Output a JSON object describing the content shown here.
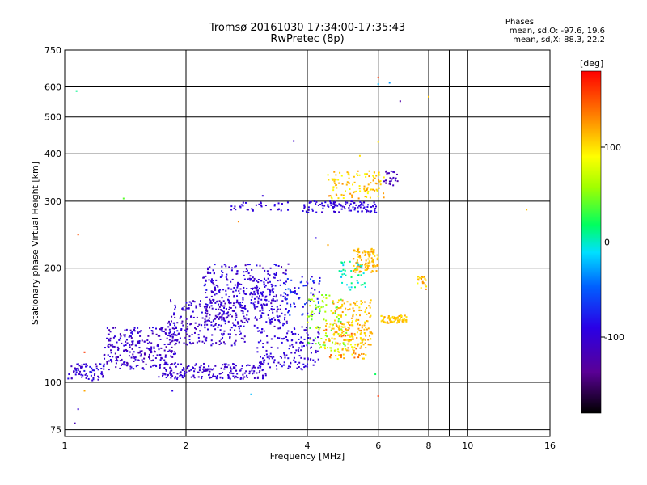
{
  "header": {
    "title_line1": "Tromsø 20161030 17:34:00-17:35:43",
    "title_line2": "RwPretec (8p)",
    "stats_title": "Phases",
    "stats_o": "mean, sd,O:  -97.6, 19.6",
    "stats_x": "mean, sd,X:  88.3, 22.2"
  },
  "colorbar": {
    "unit_label": "[deg]",
    "tick_labels": [
      "100",
      "0",
      "-100"
    ],
    "tick_values": [
      100,
      0,
      -100
    ],
    "range": [
      -180,
      180
    ]
  },
  "chart_data": {
    "type": "scatter",
    "title": "Tromsø 20161030 17:34:00-17:35:43",
    "subtitle": "RwPretec (8p)",
    "xlabel": "Frequency [MHz]",
    "ylabel": "Stationary phase Virtual Height [km]",
    "x_scale": "log",
    "y_scale": "log",
    "xlim": [
      1,
      16
    ],
    "ylim": [
      72,
      750
    ],
    "x_ticks": [
      1,
      2,
      4,
      6,
      8,
      10,
      16
    ],
    "x_tick_labels": [
      "1",
      "2",
      "4",
      "6",
      "8",
      "10",
      "16"
    ],
    "x_grid": [
      2,
      4,
      6,
      8,
      10,
      16
    ],
    "x_minor_grid": [
      9
    ],
    "y_ticks": [
      75,
      100,
      200,
      300,
      400,
      500,
      600,
      750
    ],
    "y_tick_labels": [
      "75",
      "100",
      "200",
      "300",
      "400",
      "500",
      "600",
      "750"
    ],
    "grid": true,
    "color_axis": "phase [deg]",
    "clusters": [
      {
        "x": [
          1.02,
          1.25
        ],
        "y": [
          101,
          112
        ],
        "phase": [
          -120,
          -80
        ],
        "n": 70
      },
      {
        "x": [
          1.25,
          1.9
        ],
        "y": [
          108,
          140
        ],
        "phase": [
          -130,
          -85
        ],
        "n": 280
      },
      {
        "x": [
          1.8,
          2.8
        ],
        "y": [
          125,
          165
        ],
        "phase": [
          -125,
          -85
        ],
        "n": 240
      },
      {
        "x": [
          2.2,
          3.6
        ],
        "y": [
          140,
          205
        ],
        "phase": [
          -125,
          -80
        ],
        "n": 300
      },
      {
        "x": [
          1.7,
          3.2
        ],
        "y": [
          102,
          112
        ],
        "phase": [
          -115,
          -90
        ],
        "n": 200
      },
      {
        "x": [
          3.0,
          4.3
        ],
        "y": [
          108,
          140
        ],
        "phase": [
          -110,
          -85
        ],
        "n": 160
      },
      {
        "x": [
          2.3,
          3.4
        ],
        "y": [
          155,
          195
        ],
        "phase": [
          -105,
          -85
        ],
        "n": 90
      },
      {
        "x": [
          3.5,
          4.3
        ],
        "y": [
          150,
          190
        ],
        "phase": [
          -110,
          -40
        ],
        "n": 70
      },
      {
        "x": [
          4.0,
          5.0
        ],
        "y": [
          120,
          170
        ],
        "phase": [
          30,
          80
        ],
        "n": 90
      },
      {
        "x": [
          4.4,
          5.6
        ],
        "y": [
          115,
          145
        ],
        "phase": [
          80,
          150
        ],
        "n": 110
      },
      {
        "x": [
          4.6,
          5.8
        ],
        "y": [
          125,
          165
        ],
        "phase": [
          95,
          130
        ],
        "n": 140
      },
      {
        "x": [
          5.2,
          6.0
        ],
        "y": [
          195,
          225
        ],
        "phase": [
          100,
          130
        ],
        "n": 110
      },
      {
        "x": [
          6.1,
          7.1
        ],
        "y": [
          143,
          150
        ],
        "phase": [
          95,
          125
        ],
        "n": 70
      },
      {
        "x": [
          3.9,
          6.0
        ],
        "y": [
          280,
          300
        ],
        "phase": [
          -110,
          -80
        ],
        "n": 110
      },
      {
        "x": [
          4.5,
          6.2
        ],
        "y": [
          305,
          360
        ],
        "phase": [
          85,
          130
        ],
        "n": 110
      },
      {
        "x": [
          2.5,
          3.6
        ],
        "y": [
          282,
          298
        ],
        "phase": [
          -110,
          -85
        ],
        "n": 35
      },
      {
        "x": [
          4.8,
          5.6
        ],
        "y": [
          175,
          210
        ],
        "phase": [
          -20,
          20
        ],
        "n": 40
      },
      {
        "x": [
          6.2,
          6.7
        ],
        "y": [
          330,
          360
        ],
        "phase": [
          -130,
          -100
        ],
        "n": 25
      },
      {
        "x": [
          7.5,
          7.9
        ],
        "y": [
          175,
          190
        ],
        "phase": [
          90,
          130
        ],
        "n": 20
      }
    ],
    "points": [
      {
        "x": 1.07,
        "y": 585,
        "phase": 10
      },
      {
        "x": 1.4,
        "y": 305,
        "phase": 40
      },
      {
        "x": 1.08,
        "y": 245,
        "phase": 150
      },
      {
        "x": 1.12,
        "y": 120,
        "phase": 160
      },
      {
        "x": 1.08,
        "y": 85,
        "phase": -100
      },
      {
        "x": 1.06,
        "y": 78,
        "phase": -120
      },
      {
        "x": 1.12,
        "y": 95,
        "phase": 120
      },
      {
        "x": 1.85,
        "y": 95,
        "phase": -90
      },
      {
        "x": 2.9,
        "y": 93,
        "phase": -20
      },
      {
        "x": 3.7,
        "y": 432,
        "phase": -110
      },
      {
        "x": 6.0,
        "y": 635,
        "phase": 160
      },
      {
        "x": 6.0,
        "y": 610,
        "phase": -20
      },
      {
        "x": 6.4,
        "y": 615,
        "phase": -30
      },
      {
        "x": 6.8,
        "y": 550,
        "phase": -130
      },
      {
        "x": 8.0,
        "y": 565,
        "phase": 110
      },
      {
        "x": 14.0,
        "y": 285,
        "phase": 110
      },
      {
        "x": 5.4,
        "y": 395,
        "phase": 100
      },
      {
        "x": 5.7,
        "y": 360,
        "phase": 110
      },
      {
        "x": 6.0,
        "y": 430,
        "phase": 100
      },
      {
        "x": 6.0,
        "y": 92,
        "phase": 160
      },
      {
        "x": 5.9,
        "y": 105,
        "phase": 20
      },
      {
        "x": 2.7,
        "y": 265,
        "phase": 130
      },
      {
        "x": 3.1,
        "y": 310,
        "phase": -100
      },
      {
        "x": 4.2,
        "y": 240,
        "phase": -90
      },
      {
        "x": 4.5,
        "y": 230,
        "phase": 120
      }
    ]
  }
}
